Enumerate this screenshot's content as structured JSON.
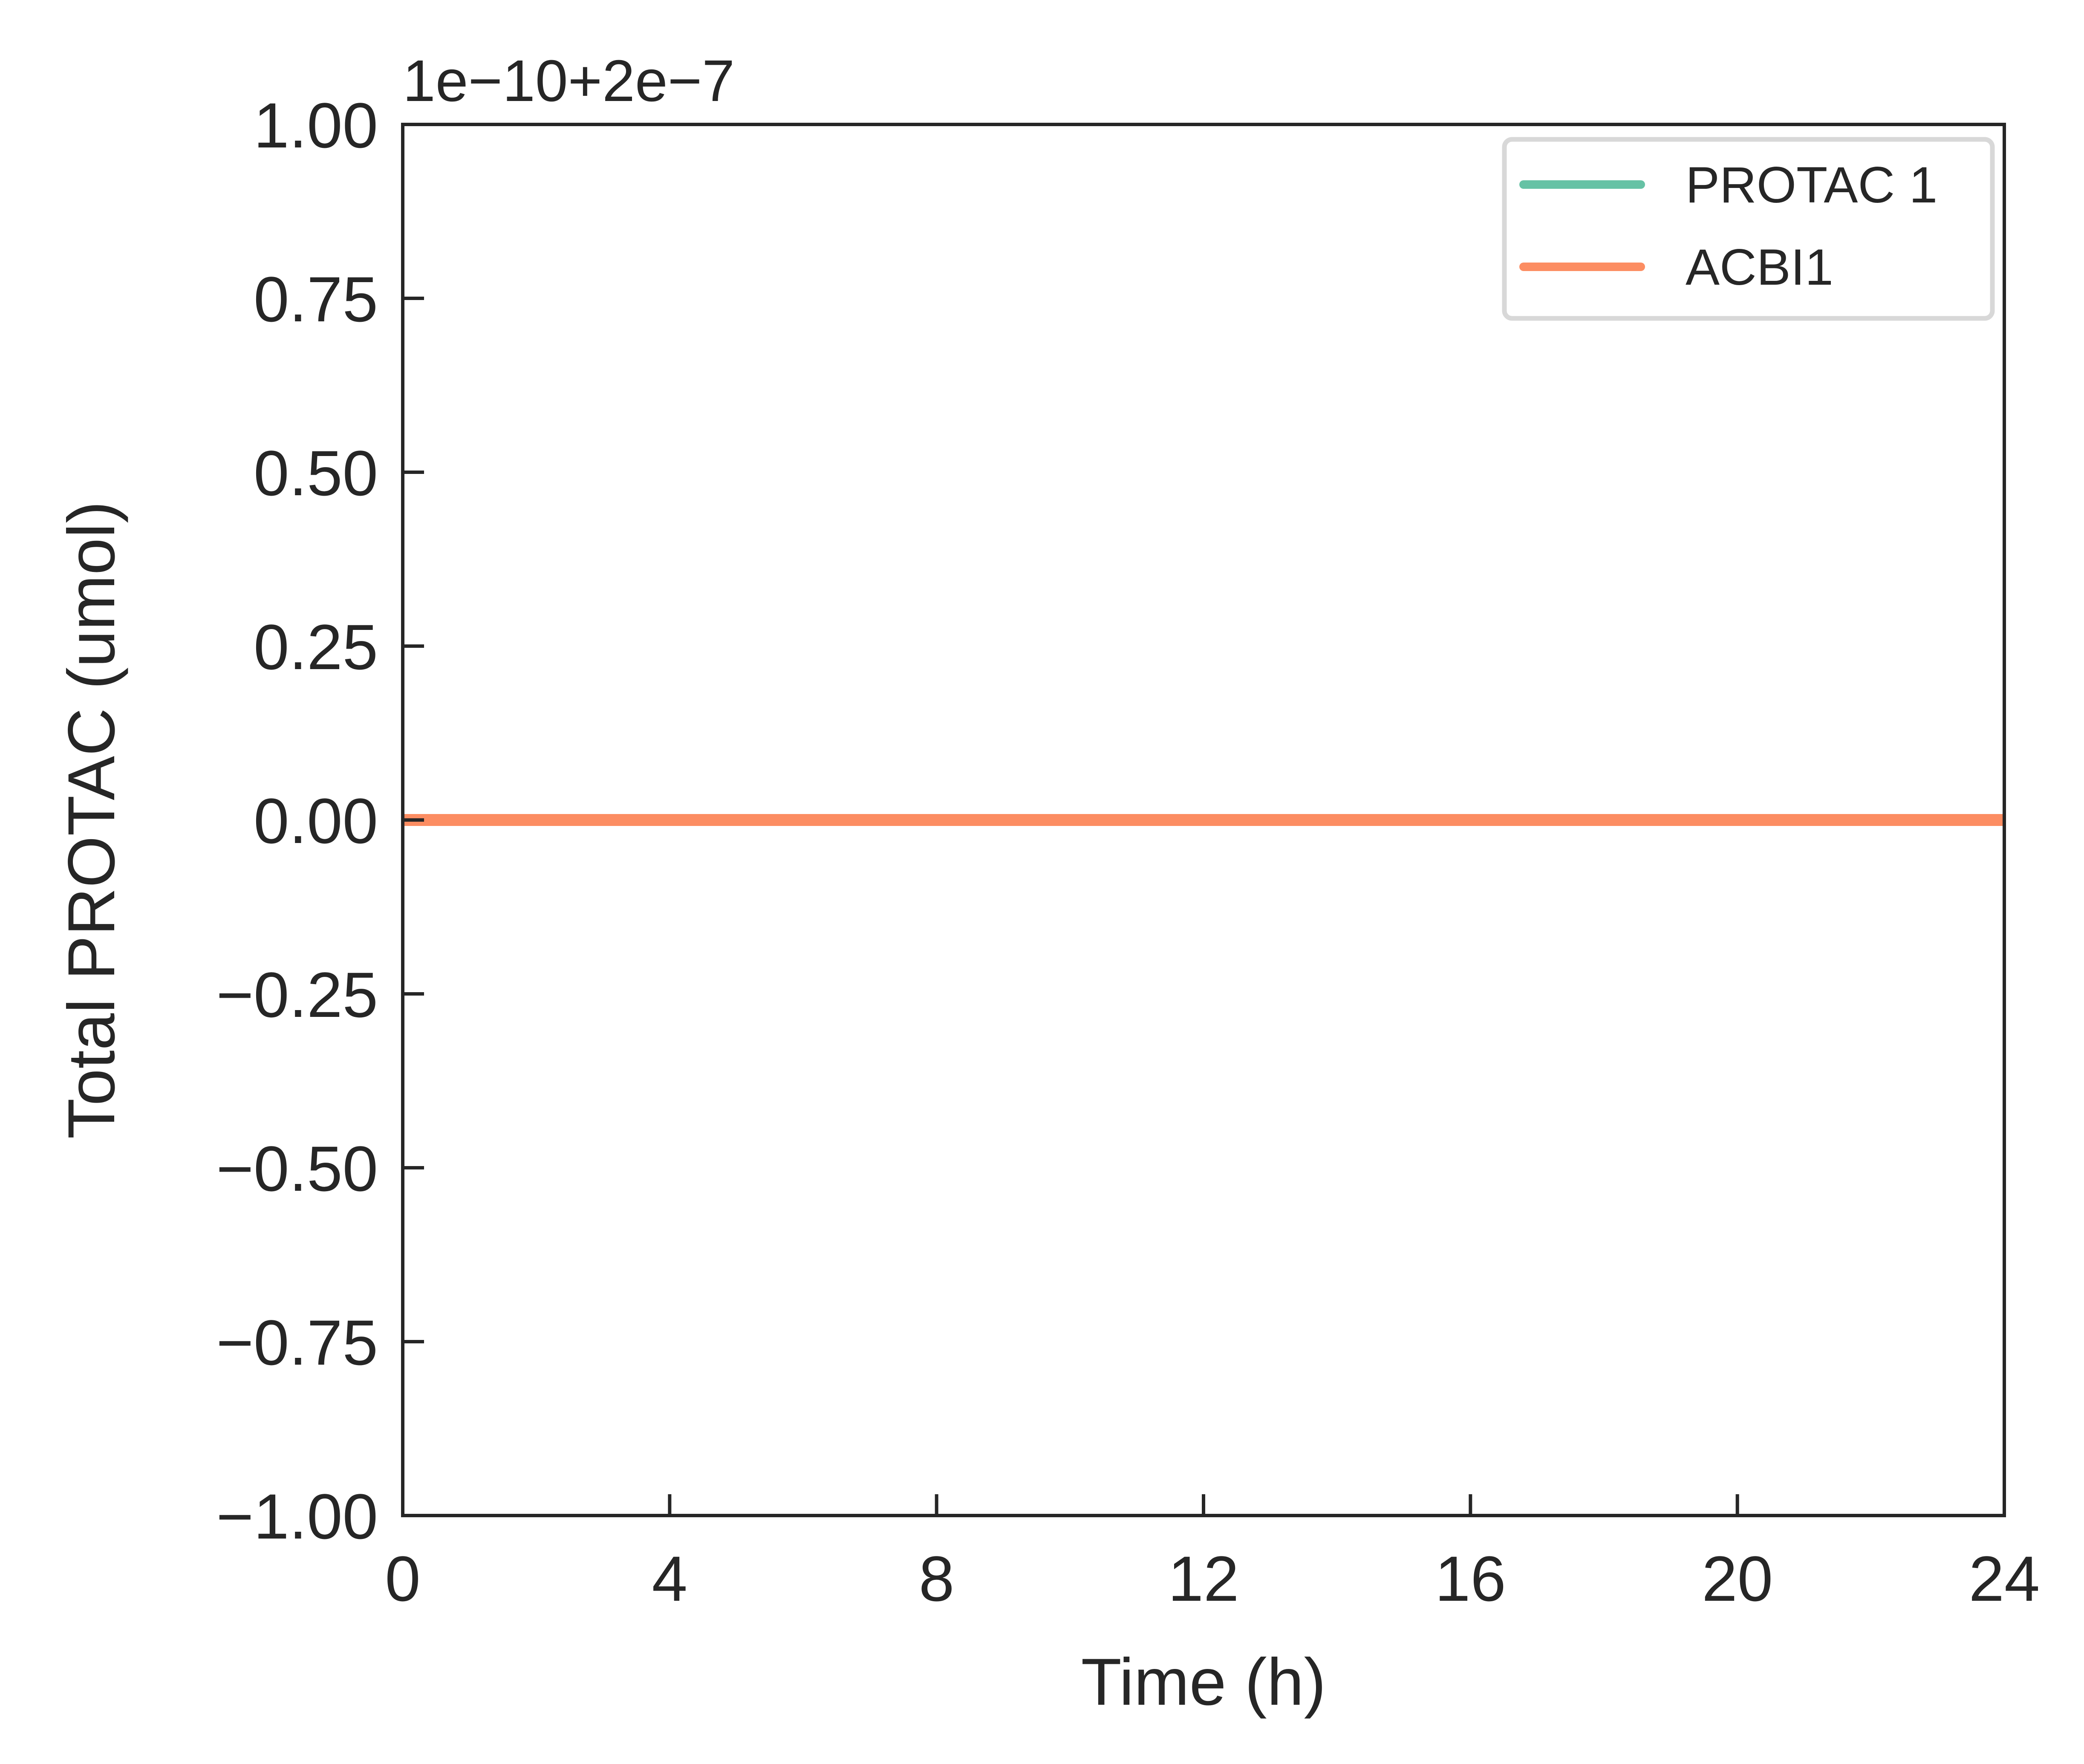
{
  "chart_data": {
    "type": "line",
    "xlabel": "Time (h)",
    "ylabel": "Total PROTAC (umol)",
    "y_offset_text": "1e−10+2e−7",
    "xlim": [
      0,
      24
    ],
    "ylim": [
      -1.0,
      1.0
    ],
    "x_ticks": [
      0,
      4,
      8,
      12,
      16,
      20,
      24
    ],
    "x_tick_labels": [
      "0",
      "4",
      "8",
      "12",
      "16",
      "20",
      "24"
    ],
    "y_ticks": [
      -1.0,
      -0.75,
      -0.5,
      -0.25,
      0.0,
      0.25,
      0.5,
      0.75,
      1.0
    ],
    "y_tick_labels": [
      "−1.00",
      "−0.75",
      "−0.50",
      "−0.25",
      "0.00",
      "0.25",
      "0.50",
      "0.75",
      "1.00"
    ],
    "grid": false,
    "legend_position": "top-right",
    "series": [
      {
        "name": "PROTAC 1",
        "color": "#66c2a5",
        "x": [
          0,
          2,
          4,
          6,
          8,
          10,
          12,
          14,
          16,
          18,
          20,
          22,
          24
        ],
        "y": [
          0,
          0,
          0,
          0,
          0,
          0,
          0,
          0,
          0,
          0,
          0,
          0,
          0
        ]
      },
      {
        "name": "ACBI1",
        "color": "#fc8d62",
        "x": [
          0,
          2,
          4,
          6,
          8,
          10,
          12,
          14,
          16,
          18,
          20,
          22,
          24
        ],
        "y": [
          0,
          0,
          0,
          0,
          0,
          0,
          0,
          0,
          0,
          0,
          0,
          0,
          0
        ]
      }
    ]
  }
}
